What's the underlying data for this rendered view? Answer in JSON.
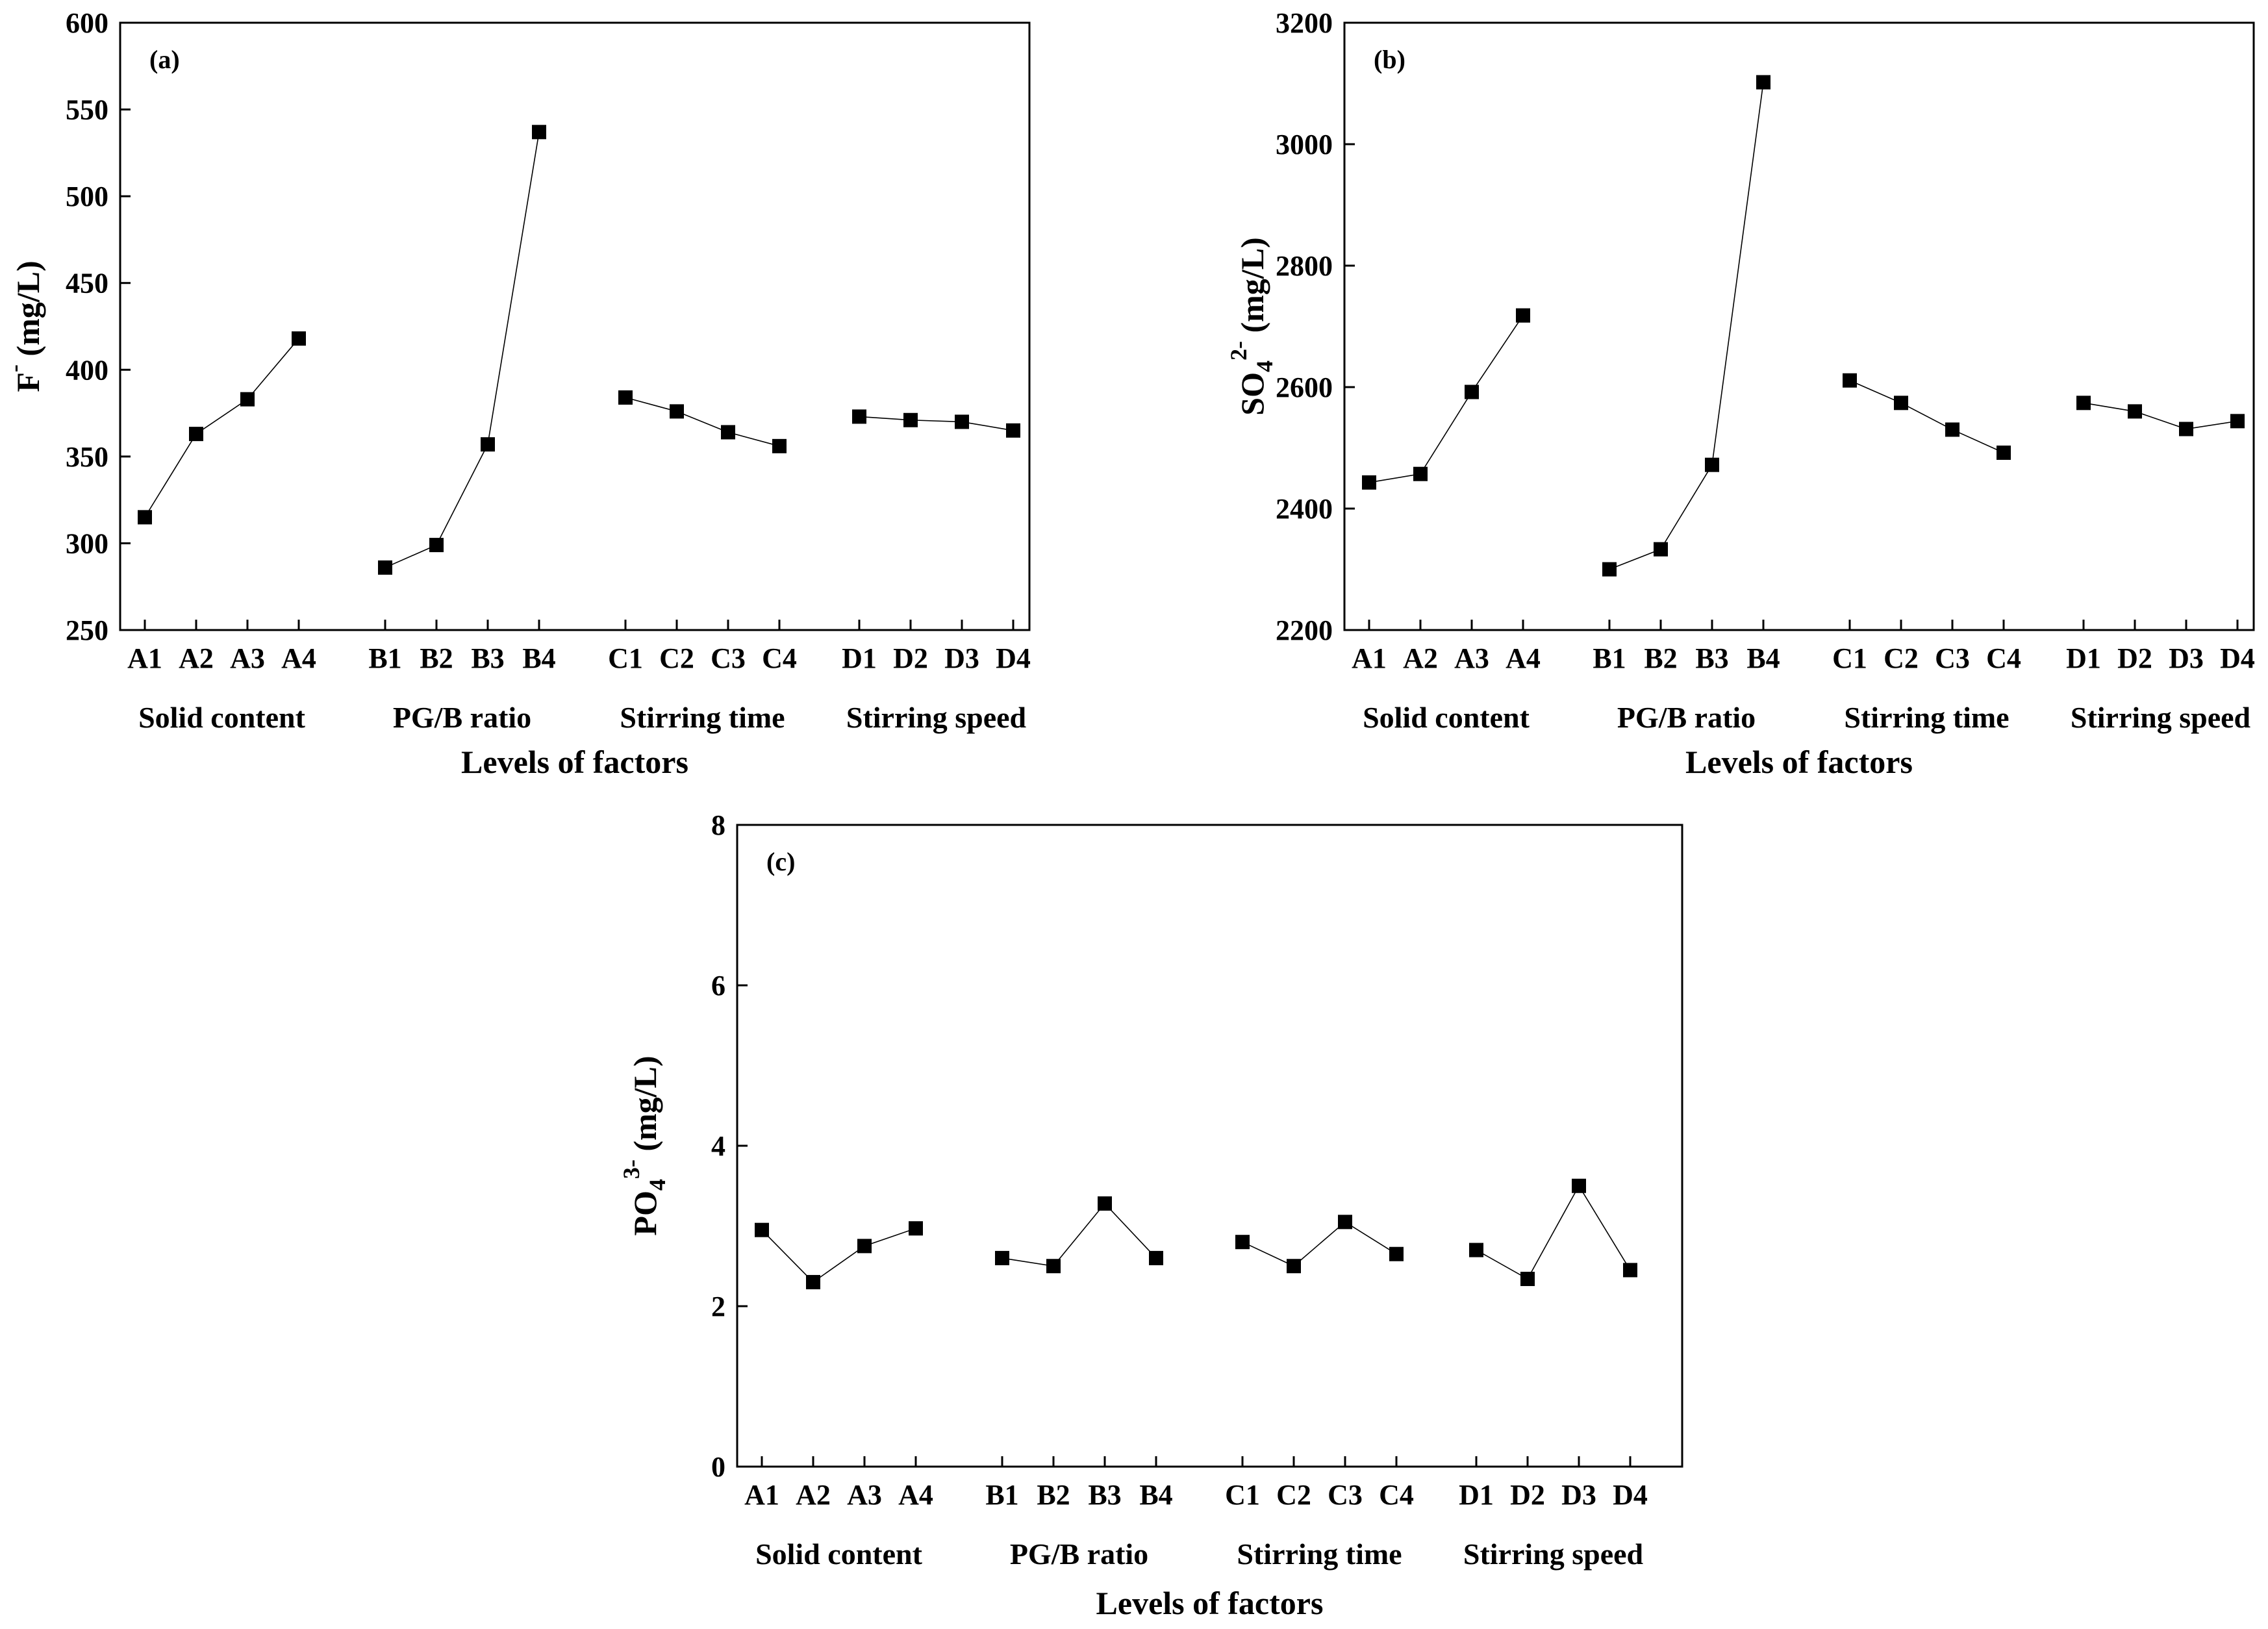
{
  "chart_data": [
    {
      "id": "a",
      "type": "line",
      "panel_label": "(a)",
      "ylabel": {
        "main": "F",
        "sup": "-",
        "unit": " (mg/L)"
      },
      "ylim": [
        250,
        600
      ],
      "yticks": [
        250,
        300,
        350,
        400,
        450,
        500,
        550,
        600
      ],
      "xlabel": "Levels of factors",
      "groups": [
        {
          "name": "Solid content",
          "levels": [
            "A1",
            "A2",
            "A3",
            "A4"
          ],
          "values": [
            315,
            363,
            383,
            418
          ]
        },
        {
          "name": "PG/B ratio",
          "levels": [
            "B1",
            "B2",
            "B3",
            "B4"
          ],
          "values": [
            286,
            299,
            357,
            537
          ]
        },
        {
          "name": "Stirring time",
          "levels": [
            "C1",
            "C2",
            "C3",
            "C4"
          ],
          "values": [
            384,
            376,
            364,
            356
          ]
        },
        {
          "name": "Stirring speed",
          "levels": [
            "D1",
            "D2",
            "D3",
            "D4"
          ],
          "values": [
            373,
            371,
            370,
            365
          ]
        }
      ]
    },
    {
      "id": "b",
      "type": "line",
      "panel_label": "(b)",
      "ylabel": {
        "main": "SO",
        "sub": "4",
        "sup": "2-",
        "unit": " (mg/L)"
      },
      "ylim": [
        2200,
        3200
      ],
      "yticks": [
        2200,
        2400,
        2600,
        2800,
        3000,
        3200
      ],
      "xlabel": "Levels of factors",
      "groups": [
        {
          "name": "Solid content",
          "levels": [
            "A1",
            "A2",
            "A3",
            "A4"
          ],
          "values": [
            2443,
            2457,
            2592,
            2718
          ]
        },
        {
          "name": "PG/B ratio",
          "levels": [
            "B1",
            "B2",
            "B3",
            "B4"
          ],
          "values": [
            2300,
            2333,
            2472,
            3102
          ]
        },
        {
          "name": "Stirring time",
          "levels": [
            "C1",
            "C2",
            "C3",
            "C4"
          ],
          "values": [
            2611,
            2574,
            2530,
            2492
          ]
        },
        {
          "name": "Stirring speed",
          "levels": [
            "D1",
            "D2",
            "D3",
            "D4"
          ],
          "values": [
            2574,
            2560,
            2531,
            2544
          ]
        }
      ]
    },
    {
      "id": "c",
      "type": "line",
      "panel_label": "(c)",
      "ylabel": {
        "main": "PO",
        "sub": "4",
        "sup": "3-",
        "unit": " (mg/L)"
      },
      "ylim": [
        0,
        8
      ],
      "yticks": [
        0,
        2,
        4,
        6,
        8
      ],
      "xlabel": "Levels of factors",
      "groups": [
        {
          "name": "Solid content",
          "levels": [
            "A1",
            "A2",
            "A3",
            "A4"
          ],
          "values": [
            2.95,
            2.3,
            2.75,
            2.97
          ]
        },
        {
          "name": "PG/B ratio",
          "levels": [
            "B1",
            "B2",
            "B3",
            "B4"
          ],
          "values": [
            2.6,
            2.5,
            3.28,
            2.6
          ]
        },
        {
          "name": "Stirring time",
          "levels": [
            "C1",
            "C2",
            "C3",
            "C4"
          ],
          "values": [
            2.8,
            2.5,
            3.05,
            2.65
          ]
        },
        {
          "name": "Stirring speed",
          "levels": [
            "D1",
            "D2",
            "D3",
            "D4"
          ],
          "values": [
            2.7,
            2.34,
            3.5,
            2.45
          ]
        }
      ]
    }
  ]
}
